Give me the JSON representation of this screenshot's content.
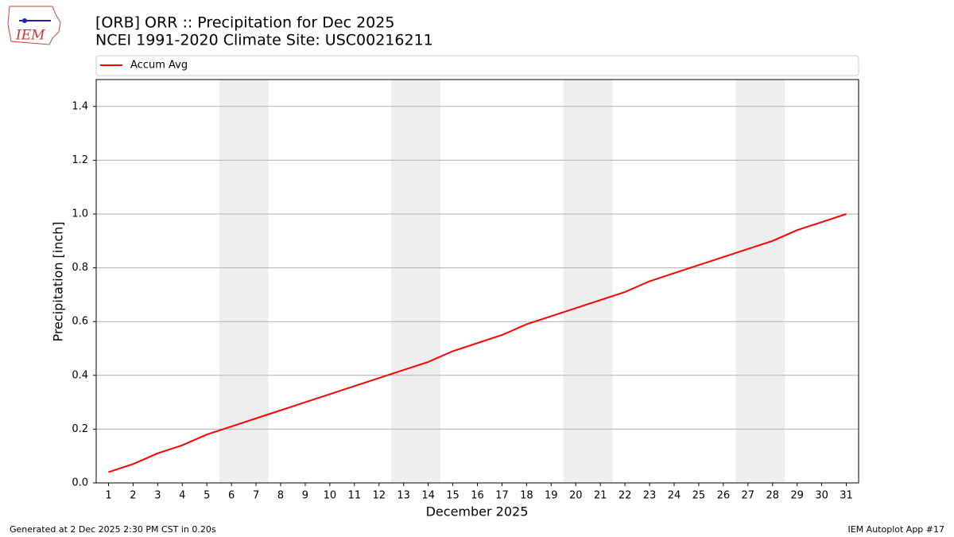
{
  "chart_data": {
    "type": "line",
    "title": "[ORB] ORR :: Precipitation for Dec 2025",
    "subtitle": "NCEI 1991-2020 Climate Site: USC00216211",
    "x_label": "December 2025",
    "y_label": "Precipitation [inch]",
    "logo_text": "IEM",
    "footer_left": "Generated at 2 Dec 2025 2:30 PM CST in 0.20s",
    "footer_right": "IEM Autoplot App #17",
    "x": [
      1,
      2,
      3,
      4,
      5,
      6,
      7,
      8,
      9,
      10,
      11,
      12,
      13,
      14,
      15,
      16,
      17,
      18,
      19,
      20,
      21,
      22,
      23,
      24,
      25,
      26,
      27,
      28,
      29,
      30,
      31
    ],
    "series": [
      {
        "name": "Accum Avg",
        "color": "#ff0000",
        "values": [
          0.04,
          0.07,
          0.11,
          0.14,
          0.18,
          0.21,
          0.24,
          0.27,
          0.3,
          0.33,
          0.36,
          0.39,
          0.42,
          0.45,
          0.49,
          0.52,
          0.55,
          0.59,
          0.62,
          0.65,
          0.68,
          0.71,
          0.75,
          0.78,
          0.81,
          0.84,
          0.87,
          0.9,
          0.94,
          0.97,
          1.0
        ]
      }
    ],
    "shaded_spans": [
      [
        5.5,
        7.5
      ],
      [
        12.5,
        14.5
      ],
      [
        19.5,
        21.5
      ],
      [
        26.5,
        28.5
      ]
    ],
    "shade_color": "#eeeeee",
    "xlim": [
      0.5,
      31.5
    ],
    "xticks": [
      1,
      2,
      3,
      4,
      5,
      6,
      7,
      8,
      9,
      10,
      11,
      12,
      13,
      14,
      15,
      16,
      17,
      18,
      19,
      20,
      21,
      22,
      23,
      24,
      25,
      26,
      27,
      28,
      29,
      30,
      31
    ],
    "ylim": [
      0,
      1.5
    ],
    "yticks": [
      {
        "value": 0,
        "label": "0.0"
      },
      0.2,
      0.4,
      0.6,
      0.8,
      {
        "value": 1,
        "label": "1.0"
      },
      1.2,
      1.4
    ],
    "grid": true,
    "legend": "top"
  }
}
